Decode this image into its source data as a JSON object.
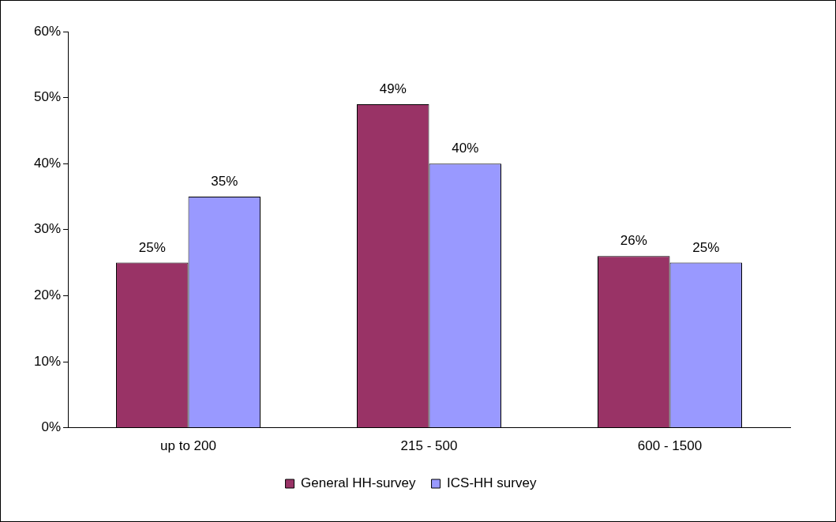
{
  "chart_data": {
    "type": "bar",
    "categories": [
      "up to 200",
      "215 - 500",
      "600 - 1500"
    ],
    "series": [
      {
        "name": "General HH-survey",
        "color": "#993366",
        "values": [
          25,
          49,
          26
        ],
        "value_labels": [
          "25%",
          "49%",
          "26%"
        ]
      },
      {
        "name": "ICS-HH survey",
        "color": "#9999ff",
        "values": [
          35,
          40,
          25
        ],
        "value_labels": [
          "35%",
          "40%",
          "25%"
        ]
      }
    ],
    "ylim": [
      0,
      60
    ],
    "yticks": [
      {
        "value": 0,
        "label": "0%"
      },
      {
        "value": 10,
        "label": "10%"
      },
      {
        "value": 20,
        "label": "20%"
      },
      {
        "value": 30,
        "label": "30%"
      },
      {
        "value": 40,
        "label": "40%"
      },
      {
        "value": 50,
        "label": "50%"
      },
      {
        "value": 60,
        "label": "60%"
      }
    ],
    "grid": false,
    "legend": "bottom"
  }
}
